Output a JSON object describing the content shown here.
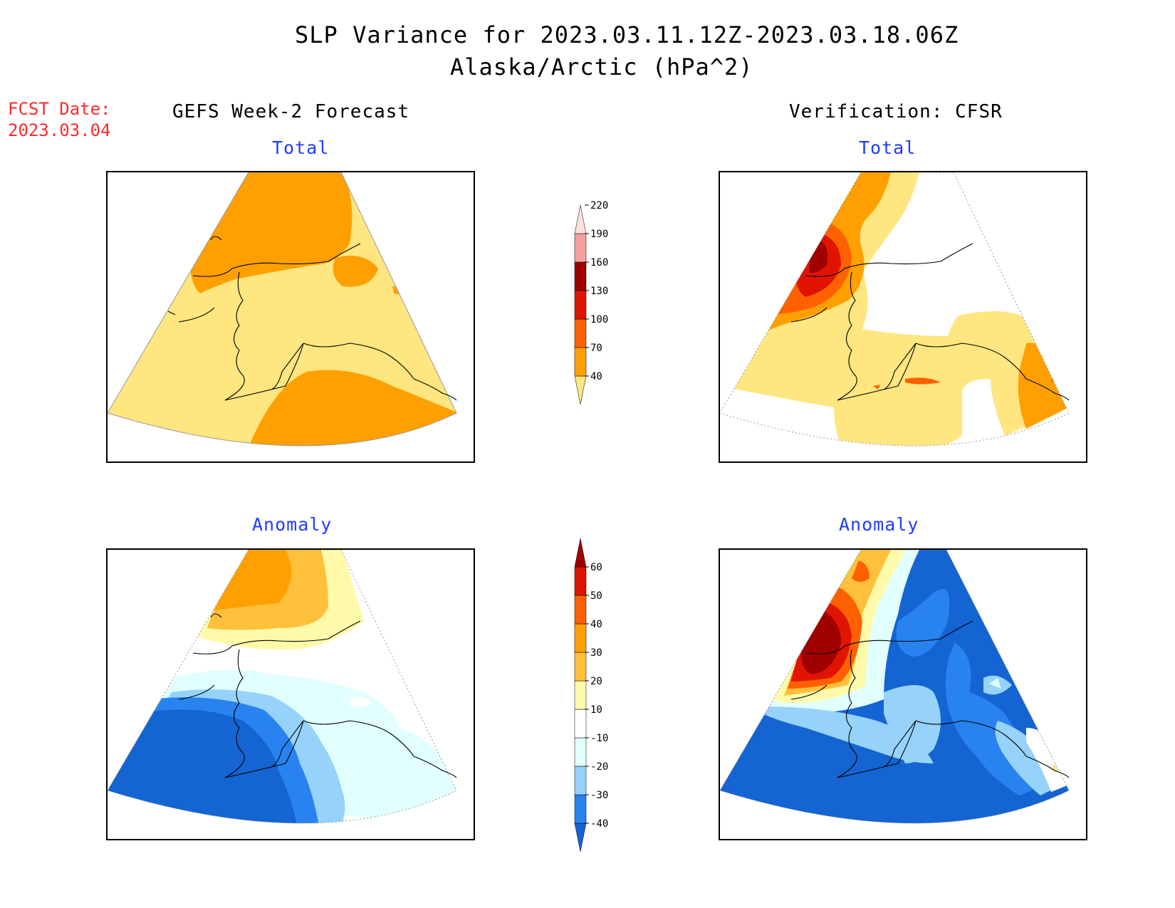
{
  "header": {
    "title": "SLP Variance for 2023.03.11.12Z-2023.03.18.06Z",
    "subtitle": "Alaska/Arctic (hPa^2)"
  },
  "fcst": {
    "label": "FCST Date:",
    "date": "2023.03.04"
  },
  "columns": {
    "left": "GEFS Week-2 Forecast",
    "right": "Verification: CFSR"
  },
  "panels": {
    "forecast_total": "Total",
    "verification_total": "Total",
    "forecast_anomaly": "Anomaly",
    "verification_anomaly": "Anomaly"
  },
  "colorbars": {
    "total": {
      "ticks": [
        "40",
        "70",
        "100",
        "130",
        "160",
        "190",
        "220"
      ],
      "colors": [
        "#ffe680",
        "#ffa000",
        "#ff6000",
        "#e01400",
        "#a00000",
        "#f4a0a0",
        "#fde0dc"
      ]
    },
    "anomaly": {
      "ticks": [
        "-40",
        "-30",
        "-20",
        "-10",
        "10",
        "20",
        "30",
        "40",
        "50",
        "60"
      ],
      "colors": [
        "#1464d2",
        "#2882f0",
        "#96d2fa",
        "#e1ffff",
        "#ffffff",
        "#fffaaa",
        "#ffc03c",
        "#ffa000",
        "#ff6000",
        "#e01400",
        "#a00000"
      ]
    }
  }
}
